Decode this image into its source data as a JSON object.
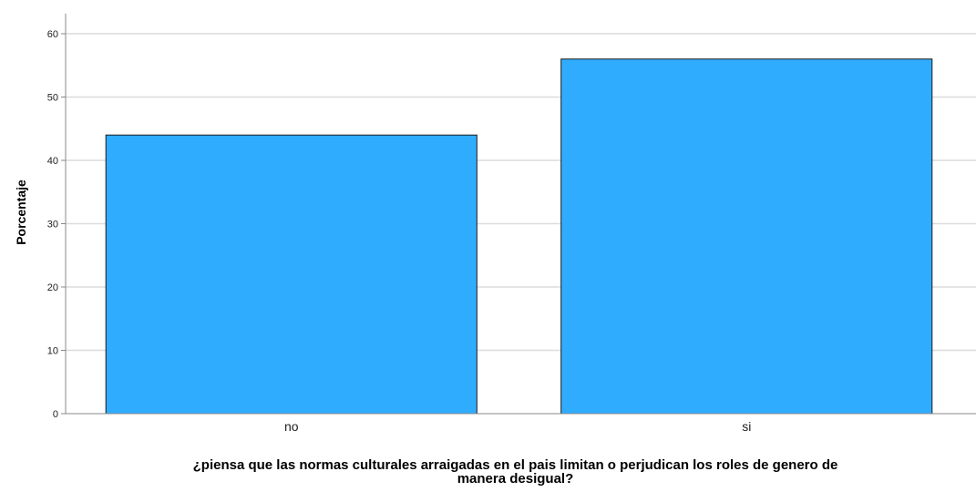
{
  "chart_data": {
    "type": "bar",
    "categories": [
      "no",
      "si"
    ],
    "values": [
      44,
      56
    ],
    "ylabel": "Porcentaje",
    "xlabel_lines": [
      "¿piensa que las normas culturales arraigadas en el pais limitan o perjudican los roles de genero de",
      "manera desigual?"
    ],
    "ylim": [
      0,
      60
    ],
    "yticks": [
      0,
      10,
      20,
      30,
      40,
      50,
      60
    ],
    "grid": true,
    "colors": {
      "bar_fill": "#30acff",
      "bar_stroke": "#1a1a1a",
      "grid": "#dcdcdc",
      "axis": "#888888"
    }
  }
}
